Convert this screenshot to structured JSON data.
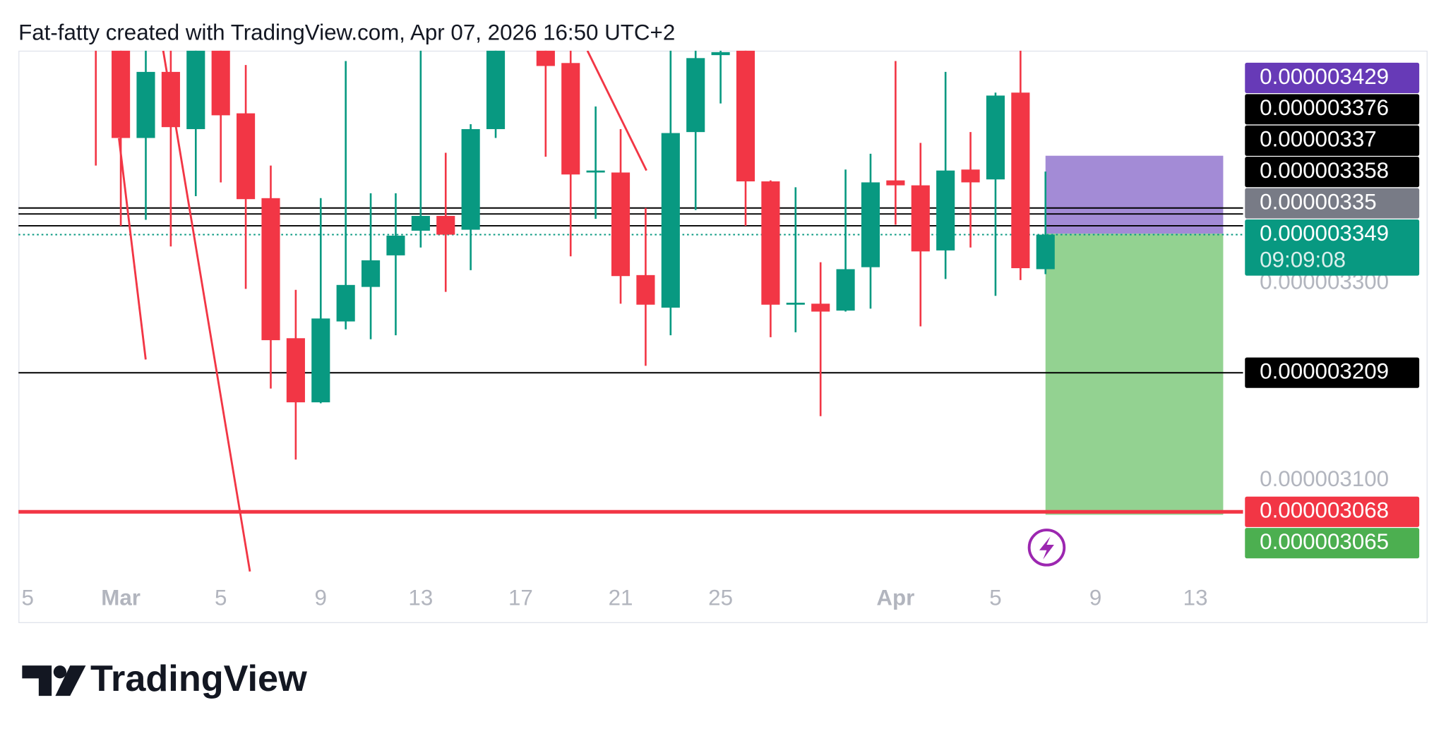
{
  "chart_data": {
    "type": "candlestick",
    "title": "Fat-fatty created with TradingView.com, Apr 07, 2026 16:50 UTC+2",
    "categories": [
      "5",
      null,
      null,
      null,
      "Mar",
      null,
      null,
      null,
      "5",
      null,
      null,
      null,
      "9",
      null,
      null,
      null,
      "13",
      null,
      null,
      null,
      "17",
      null,
      null,
      null,
      "21",
      null,
      null,
      null,
      "25",
      null,
      null,
      null,
      null,
      null,
      null,
      "Apr",
      null,
      null,
      null,
      "5",
      null,
      null,
      null,
      "9",
      null,
      null,
      null,
      "13",
      null
    ],
    "open": [
      null,
      null,
      null,
      3.56e-06,
      3.56e-06,
      3.447e-06,
      3.514e-06,
      3.456e-06,
      3.55e-06,
      3.472e-06,
      3.386e-06,
      3.244e-06,
      3.179e-06,
      3.261e-06,
      3.296e-06,
      3.328e-06,
      3.353e-06,
      3.368e-06,
      3.354e-06,
      3.456e-06,
      null,
      3.56e-06,
      3.523e-06,
      3.412e-06,
      3.412e-06,
      3.308e-06,
      3.275e-06,
      3.453e-06,
      3.531e-06,
      3.56e-06,
      3.403e-06,
      3.278e-06,
      3.279e-06,
      3.272e-06,
      3.316e-06,
      3.404e-06,
      3.399e-06,
      3.333e-06,
      3.415e-06,
      3.405e-06,
      3.493e-06,
      3.314e-06,
      null,
      null,
      null,
      null,
      null,
      null,
      null
    ],
    "high": [
      null,
      null,
      null,
      3.6e-06,
      3.58e-06,
      3.54e-06,
      3.545e-06,
      3.57e-06,
      3.57e-06,
      3.521e-06,
      3.419e-06,
      3.293e-06,
      3.386e-06,
      3.525e-06,
      3.391e-06,
      3.391e-06,
      3.545e-06,
      3.432e-06,
      3.461e-06,
      3.57e-06,
      null,
      3.58e-06,
      3.545e-06,
      3.479e-06,
      3.456e-06,
      3.376e-06,
      3.545e-06,
      3.55e-06,
      3.545e-06,
      3.58e-06,
      3.404e-06,
      3.397e-06,
      3.321e-06,
      3.415e-06,
      3.431e-06,
      3.525e-06,
      3.442e-06,
      3.514e-06,
      3.453e-06,
      3.493e-06,
      3.545e-06,
      3.413e-06,
      null,
      null,
      null,
      null,
      null,
      null,
      null
    ],
    "low": [
      null,
      null,
      null,
      3.419e-06,
      3.358e-06,
      3.364e-06,
      3.337e-06,
      3.388e-06,
      3.402e-06,
      3.294e-06,
      3.193e-06,
      3.121e-06,
      3.178e-06,
      3.253e-06,
      3.243e-06,
      3.247e-06,
      3.336e-06,
      3.291e-06,
      3.313e-06,
      3.447e-06,
      null,
      3.428e-06,
      3.327e-06,
      3.365e-06,
      3.279e-06,
      3.216e-06,
      3.247e-06,
      3.374e-06,
      3.482e-06,
      3.358e-06,
      3.245e-06,
      3.25e-06,
      3.165e-06,
      3.271e-06,
      3.274e-06,
      3.359e-06,
      3.256e-06,
      3.304e-06,
      3.336e-06,
      3.287e-06,
      3.303e-06,
      3.309e-06,
      null,
      null,
      null,
      null,
      null,
      null,
      null
    ],
    "close": [
      null,
      null,
      null,
      3.545e-06,
      3.447e-06,
      3.514e-06,
      3.458e-06,
      3.55e-06,
      3.47e-06,
      3.385e-06,
      3.242e-06,
      3.179e-06,
      3.264e-06,
      3.298e-06,
      3.323e-06,
      3.348e-06,
      3.368e-06,
      3.349e-06,
      3.456e-06,
      3.55e-06,
      null,
      3.52e-06,
      3.41e-06,
      3.414e-06,
      3.307e-06,
      3.278e-06,
      3.452e-06,
      3.528e-06,
      3.534e-06,
      3.403e-06,
      3.278e-06,
      3.28e-06,
      3.271e-06,
      3.314e-06,
      3.402e-06,
      3.399e-06,
      3.332e-06,
      3.414e-06,
      3.402e-06,
      3.49e-06,
      3.315e-06,
      3.349e-06,
      null,
      null,
      null,
      null,
      null,
      null,
      null
    ],
    "up_color": "#089981",
    "down_color": "#f23645",
    "ylim": [
      2.9935e-06,
      3.5355e-06
    ],
    "yticks": [
      {
        "value": 3.3e-06,
        "label": "0.000003300"
      },
      {
        "value": 3.1e-06,
        "label": "0.000003100"
      }
    ],
    "price_lines": [
      {
        "value": 3.376e-06,
        "color": "#000000",
        "line": "solid"
      },
      {
        "value": 3.37e-06,
        "color": "#000000",
        "line": "solid"
      },
      {
        "value": 3.358e-06,
        "color": "#000000",
        "line": "solid"
      },
      {
        "value": 3.349e-06,
        "color": "#089981",
        "line": "dotted",
        "countdown": "09:09:08"
      },
      {
        "value": 3.209e-06,
        "color": "#000000",
        "line": "solid"
      },
      {
        "value": 3.068e-06,
        "color": "#f23645",
        "line": "thick"
      }
    ],
    "position": {
      "top": 3.429e-06,
      "entry": 3.35e-06,
      "bottom": 3.065e-06,
      "top_color": "#673ab7",
      "entry_color": "#787b86",
      "bottom_color": "#4caf50",
      "top_fill": "#a38bd6",
      "bottom_fill": "#93d291"
    }
  },
  "footer": {
    "logo": "TradingView"
  }
}
